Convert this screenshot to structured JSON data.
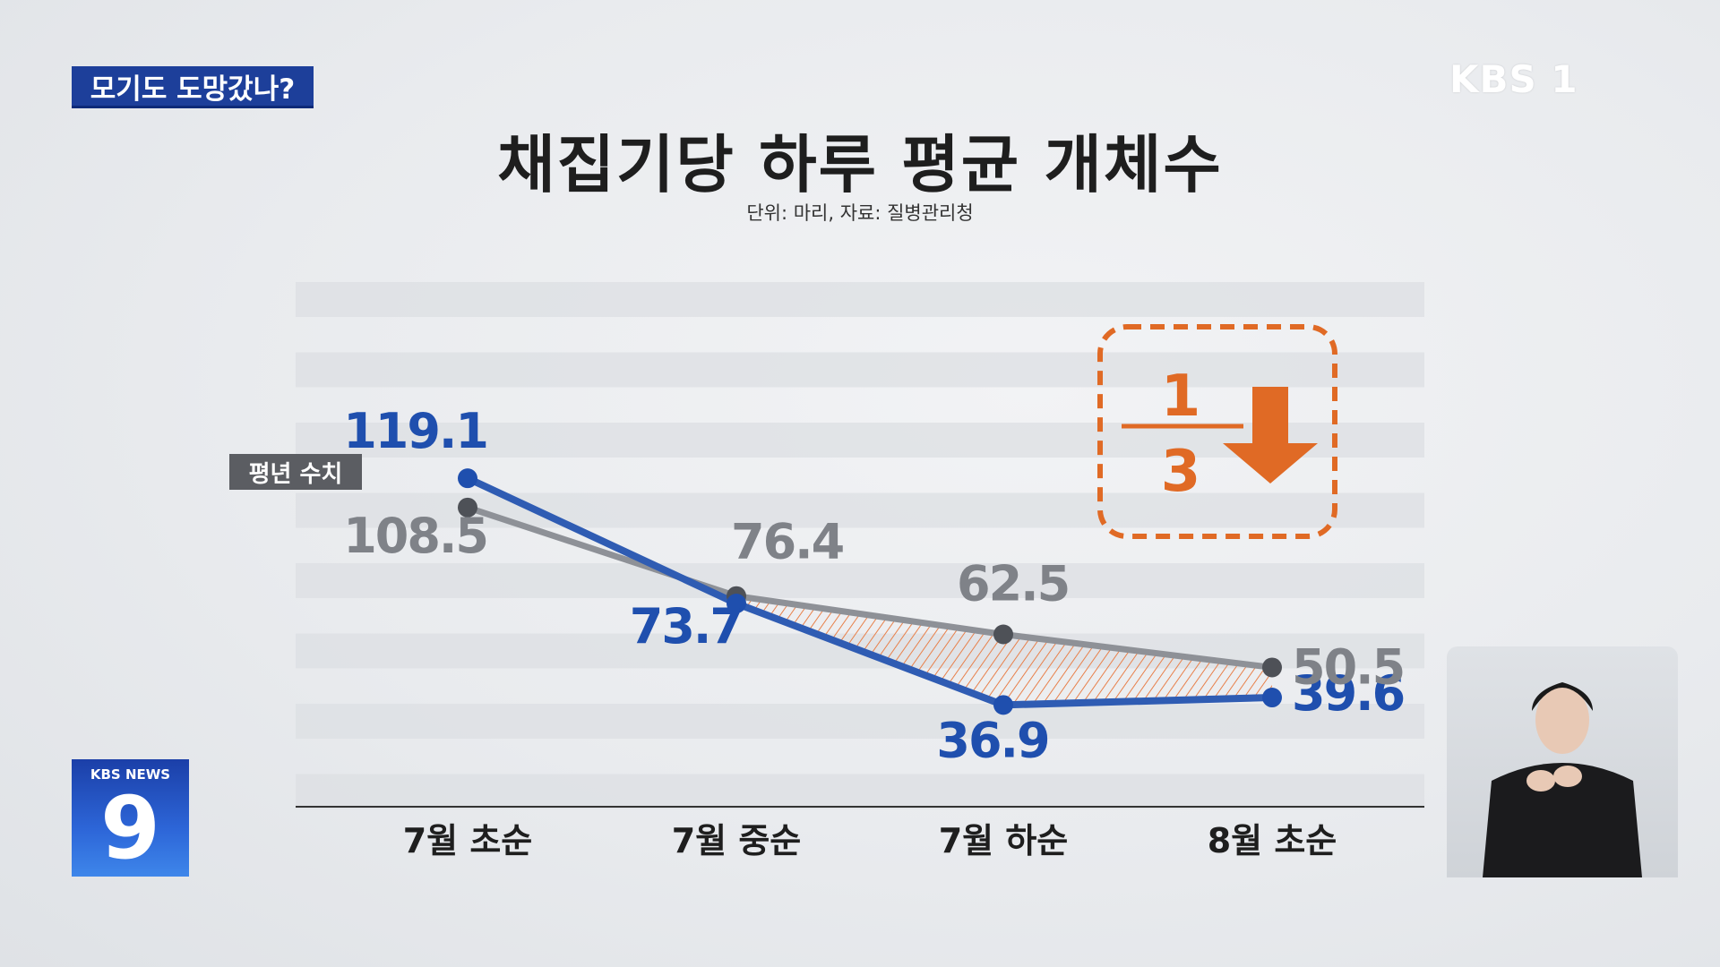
{
  "topic": "모기도 도망갔나?",
  "channel": "KBS 1",
  "news_logo": {
    "small": "KBS NEWS",
    "big": "9"
  },
  "chart_data": {
    "type": "line",
    "title": "채집기당 하루 평균 개체수",
    "subtitle": "단위: 마리, 자료: 질병관리청",
    "categories": [
      "7월 초순",
      "7월 중순",
      "7월 하순",
      "8월 초순"
    ],
    "series": [
      {
        "name": "",
        "color": "#2f5cb3",
        "values": [
          119.1,
          73.7,
          36.9,
          39.6
        ]
      },
      {
        "name": "평년 수치",
        "color": "#8e9197",
        "values": [
          108.5,
          76.4,
          62.5,
          50.5
        ]
      }
    ],
    "ylim": [
      0,
      135
    ],
    "grid": "horizontal bands",
    "annotation": {
      "numerator": "1",
      "denominator": "3",
      "color": "#e06a25",
      "icon": "down-arrow-icon"
    }
  }
}
